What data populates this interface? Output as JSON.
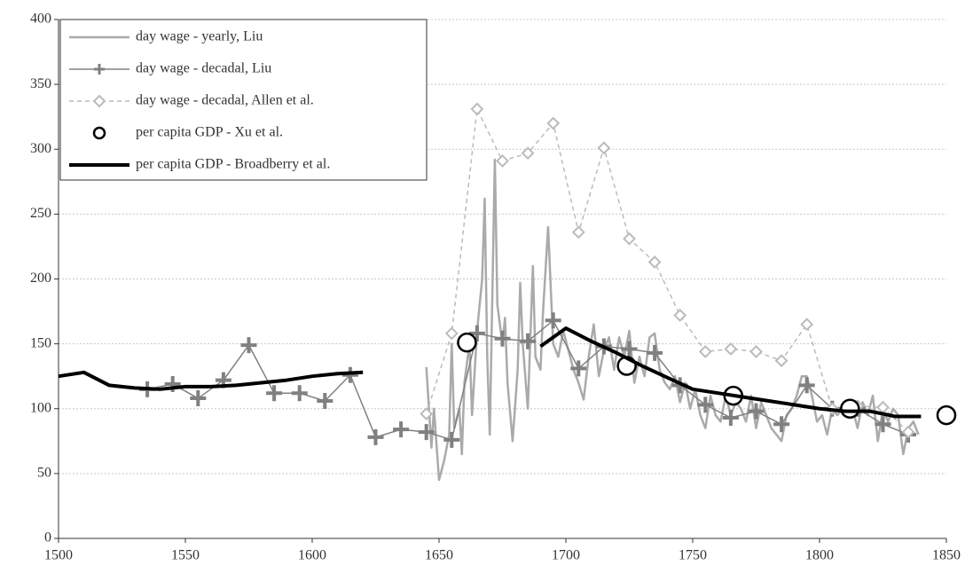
{
  "chart_data": {
    "type": "line",
    "xlim": [
      1500,
      1850
    ],
    "ylim": [
      0,
      400
    ],
    "xticks": [
      1500,
      1550,
      1600,
      1650,
      1700,
      1750,
      1800,
      1850
    ],
    "yticks": [
      0,
      50,
      100,
      150,
      200,
      250,
      300,
      350,
      400
    ],
    "grid": true,
    "legend": "top-left",
    "series": [
      {
        "name": "day wage - yearly, Liu",
        "color": "#aaaaaa",
        "line_width": 2.5,
        "dash": false,
        "marker": "none",
        "x": [
          1645,
          1647,
          1648,
          1650,
          1652,
          1654,
          1655,
          1656,
          1658,
          1659,
          1660,
          1662,
          1663,
          1665,
          1667,
          1668,
          1669,
          1670,
          1672,
          1673,
          1675,
          1676,
          1677,
          1679,
          1681,
          1682,
          1683,
          1685,
          1687,
          1688,
          1690,
          1691,
          1693,
          1695,
          1697,
          1699,
          1701,
          1703,
          1705,
          1707,
          1709,
          1711,
          1713,
          1715,
          1717,
          1719,
          1721,
          1723,
          1725,
          1727,
          1729,
          1731,
          1733,
          1735,
          1737,
          1739,
          1741,
          1743,
          1745,
          1747,
          1749,
          1751,
          1753,
          1755,
          1757,
          1759,
          1761,
          1763,
          1765,
          1767,
          1769,
          1771,
          1773,
          1775,
          1777,
          1779,
          1781,
          1783,
          1785,
          1787,
          1789,
          1791,
          1793,
          1795,
          1797,
          1799,
          1801,
          1803,
          1805,
          1807,
          1809,
          1811,
          1813,
          1815,
          1817,
          1819,
          1821,
          1823,
          1825,
          1827,
          1829,
          1831,
          1833,
          1835,
          1837,
          1839
        ],
        "values": [
          132,
          70,
          100,
          45,
          60,
          80,
          150,
          85,
          100,
          65,
          120,
          150,
          95,
          160,
          200,
          262,
          140,
          80,
          292,
          180,
          150,
          170,
          120,
          75,
          130,
          197,
          150,
          100,
          210,
          140,
          130,
          175,
          240,
          150,
          140,
          160,
          145,
          130,
          120,
          107,
          140,
          165,
          125,
          145,
          155,
          130,
          155,
          140,
          160,
          120,
          140,
          125,
          155,
          158,
          130,
          120,
          115,
          125,
          105,
          120,
          100,
          115,
          95,
          85,
          110,
          95,
          90,
          110,
          95,
          105,
          100,
          90,
          110,
          85,
          105,
          95,
          85,
          80,
          75,
          95,
          100,
          110,
          125,
          125,
          110,
          90,
          95,
          80,
          100,
          95,
          100,
          105,
          100,
          85,
          105,
          95,
          110,
          75,
          100,
          90,
          100,
          95,
          65,
          85,
          90,
          80
        ]
      },
      {
        "name": "day wage - decadal, Liu",
        "color": "#808080",
        "line_width": 1.5,
        "dash": false,
        "marker": "plus",
        "x": [
          1535,
          1545,
          1555,
          1565,
          1575,
          1585,
          1595,
          1605,
          1615,
          1625,
          1635,
          1645,
          1655,
          1665,
          1675,
          1685,
          1695,
          1705,
          1715,
          1725,
          1735,
          1745,
          1755,
          1765,
          1775,
          1785,
          1795,
          1805,
          1815,
          1825,
          1835
        ],
        "values": [
          115,
          119,
          108,
          122,
          149,
          112,
          112,
          106,
          126,
          78,
          84,
          82,
          76,
          158,
          154,
          152,
          168,
          131,
          148,
          146,
          143,
          118,
          103,
          93,
          98,
          88,
          118,
          100,
          100,
          88,
          80
        ]
      },
      {
        "name": "day wage - decadal, Allen et al.",
        "color": "#bbbbbb",
        "line_width": 1.5,
        "dash": true,
        "marker": "diamond",
        "x": [
          1645,
          1655,
          1665,
          1675,
          1685,
          1695,
          1705,
          1715,
          1725,
          1735,
          1745,
          1755,
          1765,
          1775,
          1785,
          1795,
          1805,
          1815,
          1825,
          1835
        ],
        "values": [
          96,
          158,
          331,
          291,
          297,
          320,
          236,
          301,
          231,
          213,
          172,
          144,
          146,
          144,
          137,
          165,
          100,
          102,
          101,
          82
        ]
      },
      {
        "name": "per capita GDP - Xu et al.",
        "color": "#000000",
        "line_width": 0,
        "dash": false,
        "marker": "circle",
        "x": [
          1661,
          1724,
          1766,
          1812,
          1850
        ],
        "values": [
          151,
          133,
          110,
          100,
          95
        ]
      },
      {
        "name": "per capita GDP - Broadberry et al.",
        "color": "#000000",
        "line_width": 4,
        "dash": false,
        "marker": "none",
        "x": [
          1500,
          1510,
          1520,
          1530,
          1540,
          1550,
          1560,
          1570,
          1580,
          1590,
          1600,
          1610,
          1620,
          1655,
          1690,
          1700,
          1710,
          1720,
          1730,
          1740,
          1750,
          1760,
          1770,
          1780,
          1790,
          1800,
          1810,
          1820,
          1830,
          1840
        ],
        "values": [
          125,
          128,
          118,
          116,
          115,
          117,
          117,
          118,
          120,
          122,
          125,
          127,
          128,
          null,
          148,
          162,
          152,
          143,
          133,
          124,
          115,
          112,
          109,
          106,
          103,
          100,
          98,
          98,
          94,
          94
        ]
      }
    ]
  }
}
